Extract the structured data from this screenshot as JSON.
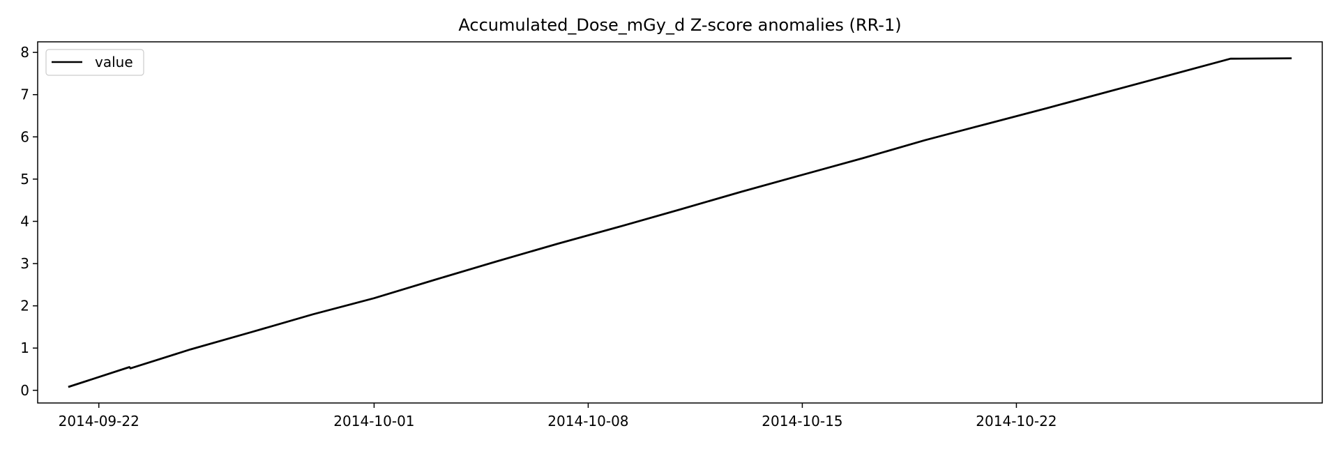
{
  "chart_data": {
    "type": "line",
    "title": "Accumulated_Dose_mGy_d Z-score anomalies (RR-1)",
    "xlabel": "",
    "ylabel": "",
    "x_axis_type": "date",
    "xlim": [
      "2014-09-20",
      "2014-11-01"
    ],
    "ylim": [
      -0.3,
      8.25
    ],
    "x_ticks": [
      "2014-09-22",
      "2014-10-01",
      "2014-10-08",
      "2014-10-15",
      "2014-10-22"
    ],
    "y_ticks": [
      0,
      1,
      2,
      3,
      4,
      5,
      6,
      7,
      8
    ],
    "grid": false,
    "legend": {
      "placement": "upper-left",
      "entries": [
        "value"
      ]
    },
    "series": [
      {
        "name": "value",
        "color": "#000000",
        "x": [
          "2014-09-21",
          "2014-09-23",
          "2014-09-23",
          "2014-09-25",
          "2014-09-27",
          "2014-09-29",
          "2014-10-01",
          "2014-10-03",
          "2014-10-05",
          "2014-10-07",
          "2014-10-09",
          "2014-10-11",
          "2014-10-13",
          "2014-10-15",
          "2014-10-17",
          "2014-10-19",
          "2014-10-21",
          "2014-10-23",
          "2014-10-25",
          "2014-10-27",
          "2014-10-29",
          "2014-10-31"
        ],
        "values": [
          0.08,
          0.55,
          0.52,
          0.97,
          1.38,
          1.8,
          2.18,
          2.62,
          3.05,
          3.47,
          3.87,
          4.28,
          4.7,
          5.1,
          5.5,
          5.92,
          6.3,
          6.68,
          7.07,
          7.46,
          7.85,
          7.86
        ]
      }
    ]
  }
}
